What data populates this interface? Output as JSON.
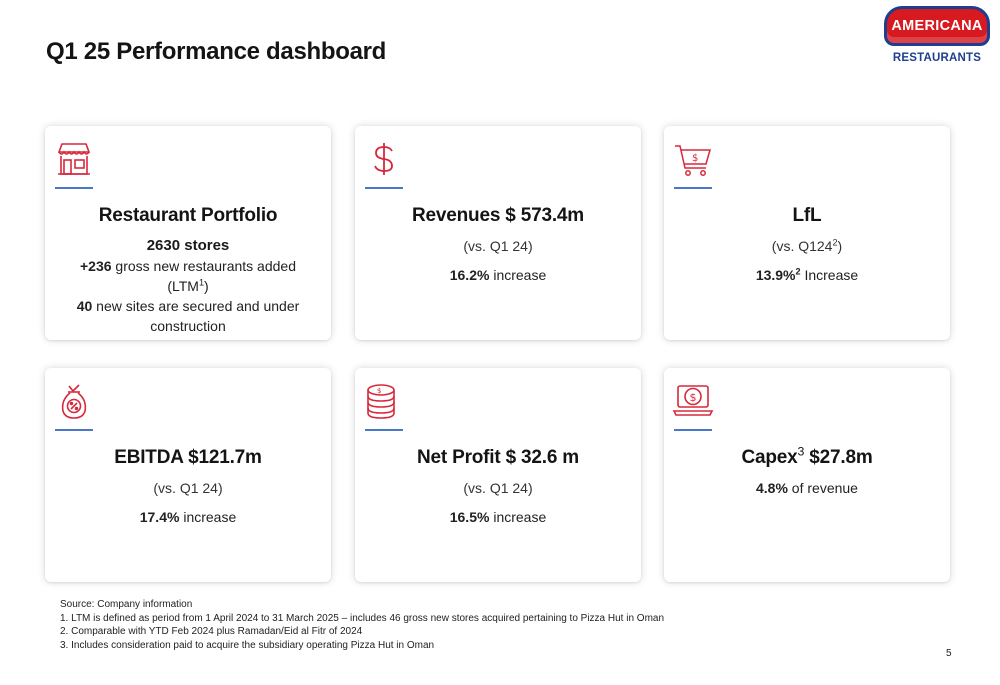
{
  "page": {
    "title": "Q1 25 Performance dashboard",
    "page_number": "5"
  },
  "logo": {
    "brand": "AMERICANA",
    "sub": "RESTAURANTS",
    "colors": {
      "red": "#d71920",
      "blue": "#1e3f8f"
    }
  },
  "accent_colors": {
    "icon": "#d7283b",
    "rule": "#4a78c9"
  },
  "cards": {
    "portfolio": {
      "icon": "storefront-icon",
      "heading": "Restaurant Portfolio",
      "stores": "2630 stores",
      "gross_num": "+236",
      "gross_text": " gross new restaurants added",
      "ltm_label": "(LTM",
      "ltm_sup": "1",
      "ltm_close": ")",
      "sites_num": "40",
      "sites_text": " new sites are secured and under construction"
    },
    "revenues": {
      "icon": "dollar-sign-icon",
      "heading": "Revenues $ 573.4m",
      "comparison": "(vs. Q1 24)",
      "pct": "16.2%",
      "pct_text": " increase"
    },
    "lfl": {
      "icon": "shopping-cart-icon",
      "heading": "LfL",
      "comparison_open": "(vs. Q124",
      "comparison_sup": "2",
      "comparison_close": ")",
      "pct": "13.9%",
      "pct_sup": "2",
      "pct_text": " Increase"
    },
    "ebitda": {
      "icon": "money-bag-percent-icon",
      "heading": "EBITDA $121.7m",
      "comparison": "(vs. Q1 24)",
      "pct": "17.4%",
      "pct_text": " increase"
    },
    "net_profit": {
      "icon": "coin-stack-icon",
      "heading": "Net Profit $ 32.6 m",
      "comparison": "(vs. Q1 24)",
      "pct": "16.5%",
      "pct_text": " increase"
    },
    "capex": {
      "icon": "laptop-dollar-icon",
      "heading_a": "Capex",
      "heading_sup": "3",
      "heading_b": " $27.8m",
      "pct": "4.8%",
      "pct_text": " of revenue"
    }
  },
  "footnotes": [
    "Source: Company information",
    "1. LTM is defined as period from 1 April 2024 to 31 March 2025 – includes 46 gross new stores acquired pertaining to Pizza Hut in Oman",
    "2. Comparable with YTD Feb 2024 plus Ramadan/Eid al Fitr of 2024",
    "3. Includes consideration paid to acquire the subsidiary operating Pizza Hut in Oman"
  ]
}
